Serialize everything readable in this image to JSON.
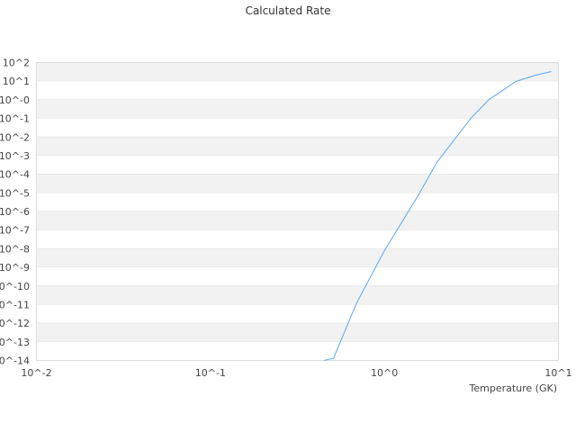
{
  "chart_data": {
    "type": "line",
    "title": "Calculated Rate",
    "xlabel": "Temperature (GK)",
    "ylabel": "",
    "x_scale": "log",
    "y_scale": "log",
    "xlim": [
      0.01,
      10
    ],
    "ylim": [
      1e-14,
      100
    ],
    "x_ticks": [
      {
        "value": 0.01,
        "label": "10^-2"
      },
      {
        "value": 0.1,
        "label": "10^-1"
      },
      {
        "value": 1,
        "label": "10^0"
      },
      {
        "value": 10,
        "label": "10^1"
      }
    ],
    "y_ticks": [
      {
        "value": 100,
        "label": "10^2"
      },
      {
        "value": 10,
        "label": "10^1"
      },
      {
        "value": 1,
        "label": "10^-0"
      },
      {
        "value": 0.1,
        "label": "10^-1"
      },
      {
        "value": 0.01,
        "label": "10^-2"
      },
      {
        "value": 0.001,
        "label": "10^-3"
      },
      {
        "value": 0.0001,
        "label": "10^-4"
      },
      {
        "value": 1e-05,
        "label": "10^-5"
      },
      {
        "value": 1e-06,
        "label": "10^-6"
      },
      {
        "value": 1e-07,
        "label": "10^-7"
      },
      {
        "value": 1e-08,
        "label": "10^-8"
      },
      {
        "value": 1e-09,
        "label": "10^-9"
      },
      {
        "value": 1e-10,
        "label": "10^-10"
      },
      {
        "value": 1e-11,
        "label": "10^-11"
      },
      {
        "value": 1e-12,
        "label": "10^-12"
      },
      {
        "value": 1e-13,
        "label": "10^-13"
      },
      {
        "value": 1e-14,
        "label": "10^-14"
      }
    ],
    "grid": true,
    "alternating_bands": true,
    "series": [
      {
        "color": "#5aa6f0",
        "x": [
          0.45,
          0.51,
          0.69,
          1.0,
          1.58,
          2.0,
          3.16,
          4.0,
          5.7,
          7.4,
          9.1
        ],
        "y": [
          1e-14,
          1.3e-14,
          1.15e-11,
          8e-09,
          8.7e-06,
          0.00044,
          0.11,
          1.05,
          9.7,
          21,
          33
        ]
      }
    ]
  }
}
